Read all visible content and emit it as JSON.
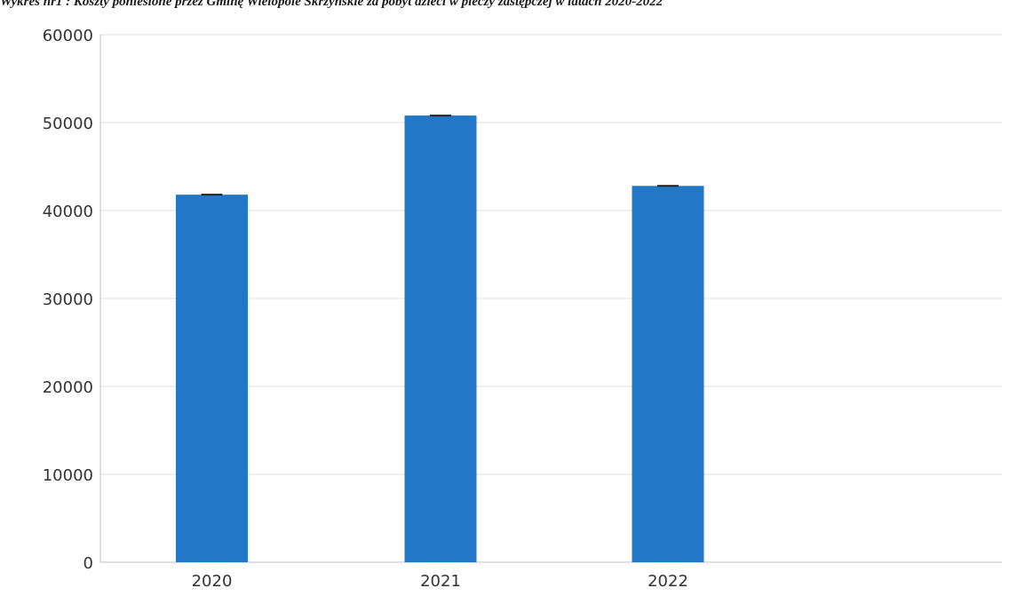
{
  "chart_data": {
    "type": "bar",
    "title": "Wykres nr1 : Koszty poniesione przez Gminę Wielopole Skrzyńskie za pobyt dzieci w pieczy zastępczej w latach 2020-2022",
    "categories": [
      "2020",
      "2021",
      "2022"
    ],
    "values": [
      41800,
      50800,
      42800
    ],
    "ylim": [
      0,
      60000
    ],
    "yticks": [
      0,
      10000,
      20000,
      30000,
      40000,
      50000,
      60000
    ],
    "ytick_labels": [
      "0",
      "10000",
      "20000",
      "30000",
      "40000",
      "50000",
      "60000"
    ],
    "xlabel": "",
    "ylabel": "",
    "grid": true,
    "legend": "none",
    "colors": {
      "bar": "#2377C7",
      "grid": "#dcdcdc",
      "axis": "#bfbfbf",
      "error_cap": "#222222"
    }
  }
}
